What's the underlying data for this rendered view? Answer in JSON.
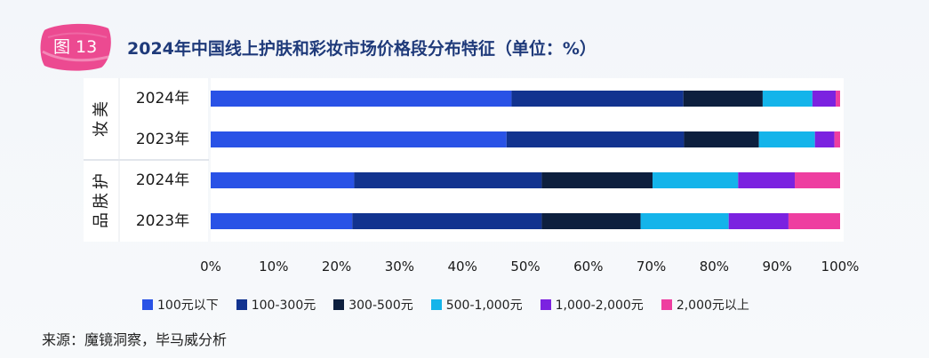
{
  "figure_label": "图 13",
  "title": "2024年中国线上护肤和彩妆市场价格段分布特征（单位：%）",
  "source": "来源：魔镜洞察，毕马威分析",
  "chart_data": {
    "type": "bar",
    "orientation": "horizontal",
    "stacked": true,
    "groups": [
      {
        "name": "美妆",
        "categories": [
          "2024年",
          "2023年"
        ]
      },
      {
        "name": "护肤品",
        "categories": [
          "2024年",
          "2023年"
        ]
      }
    ],
    "categories": [
      "美妆 2024年",
      "美妆 2023年",
      "护肤品 2024年",
      "护肤品 2023年"
    ],
    "series": [
      {
        "name": "100元以下",
        "color": "#2952e6",
        "values": [
          47.8,
          47.0,
          22.8,
          22.5
        ]
      },
      {
        "name": "100-300元",
        "color": "#12338f",
        "values": [
          27.3,
          28.2,
          29.8,
          30.1
        ]
      },
      {
        "name": "300-500元",
        "color": "#0d1f3e",
        "values": [
          12.6,
          11.9,
          17.6,
          15.7
        ]
      },
      {
        "name": "500-1,000元",
        "color": "#14b4ea",
        "values": [
          7.9,
          8.9,
          13.6,
          14.0
        ]
      },
      {
        "name": "1,000-2,000元",
        "color": "#7b22e0",
        "values": [
          3.7,
          3.1,
          9.0,
          9.5
        ]
      },
      {
        "name": "2,000元以上",
        "color": "#ee3ea0",
        "values": [
          0.7,
          0.9,
          7.2,
          8.2
        ]
      }
    ],
    "xlim": [
      0,
      100
    ],
    "xticks": [
      "0%",
      "10%",
      "20%",
      "30%",
      "40%",
      "50%",
      "60%",
      "70%",
      "80%",
      "90%",
      "100%"
    ],
    "legend_position": "bottom"
  }
}
